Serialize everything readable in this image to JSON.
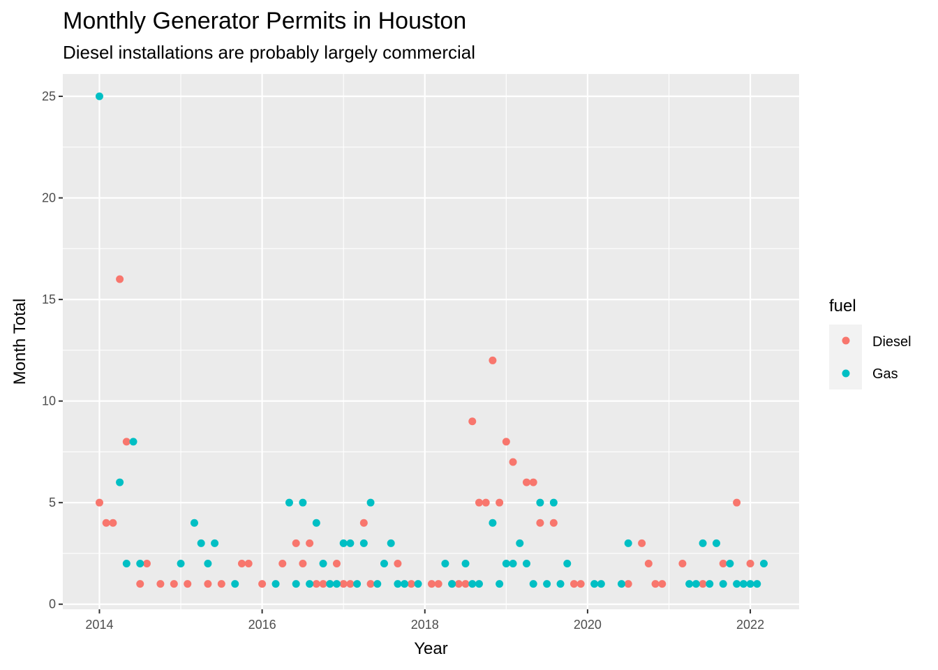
{
  "chart_data": {
    "type": "scatter",
    "title": "Monthly Generator Permits in Houston",
    "subtitle": "Diesel installations are probably largely commercial",
    "xlabel": "Year",
    "ylabel": "Month Total",
    "x_ticks": [
      "2014",
      "2016",
      "2018",
      "2020",
      "2022"
    ],
    "y_ticks": [
      "0",
      "5",
      "10",
      "15",
      "20",
      "25"
    ],
    "xlim": [
      2013.55,
      2022.6
    ],
    "ylim": [
      -0.25,
      26.1
    ],
    "grid": true,
    "legend": {
      "title": "fuel",
      "placement": "right"
    },
    "series": [
      {
        "name": "Diesel",
        "color": "#F8766D",
        "points": [
          [
            "2014-01",
            5
          ],
          [
            "2014-02",
            4
          ],
          [
            "2014-03",
            4
          ],
          [
            "2014-04",
            16
          ],
          [
            "2014-05",
            8
          ],
          [
            "2014-07",
            1
          ],
          [
            "2014-08",
            2
          ],
          [
            "2014-10",
            1
          ],
          [
            "2014-12",
            1
          ],
          [
            "2015-02",
            1
          ],
          [
            "2015-05",
            1
          ],
          [
            "2015-07",
            1
          ],
          [
            "2015-10",
            2
          ],
          [
            "2015-11",
            2
          ],
          [
            "2016-01",
            1
          ],
          [
            "2016-04",
            2
          ],
          [
            "2016-06",
            3
          ],
          [
            "2016-07",
            2
          ],
          [
            "2016-08",
            3
          ],
          [
            "2016-09",
            1
          ],
          [
            "2016-10",
            1
          ],
          [
            "2016-11",
            1
          ],
          [
            "2016-12",
            2
          ],
          [
            "2017-01",
            1
          ],
          [
            "2017-02",
            1
          ],
          [
            "2017-04",
            4
          ],
          [
            "2017-05",
            1
          ],
          [
            "2017-09",
            2
          ],
          [
            "2017-11",
            1
          ],
          [
            "2018-02",
            1
          ],
          [
            "2018-03",
            1
          ],
          [
            "2018-05",
            1
          ],
          [
            "2018-06",
            1
          ],
          [
            "2018-07",
            1
          ],
          [
            "2018-08",
            9
          ],
          [
            "2018-09",
            5
          ],
          [
            "2018-10",
            5
          ],
          [
            "2018-11",
            12
          ],
          [
            "2018-12",
            5
          ],
          [
            "2019-01",
            8
          ],
          [
            "2019-02",
            7
          ],
          [
            "2019-04",
            6
          ],
          [
            "2019-05",
            6
          ],
          [
            "2019-06",
            4
          ],
          [
            "2019-08",
            4
          ],
          [
            "2019-11",
            1
          ],
          [
            "2019-12",
            1
          ],
          [
            "2020-07",
            1
          ],
          [
            "2020-09",
            3
          ],
          [
            "2020-10",
            2
          ],
          [
            "2020-11",
            1
          ],
          [
            "2020-12",
            1
          ],
          [
            "2021-03",
            2
          ],
          [
            "2021-06",
            1
          ],
          [
            "2021-09",
            2
          ],
          [
            "2021-11",
            5
          ],
          [
            "2022-01",
            2
          ]
        ]
      },
      {
        "name": "Gas",
        "color": "#00BFC4",
        "points": [
          [
            "2014-01",
            25
          ],
          [
            "2014-04",
            6
          ],
          [
            "2014-05",
            2
          ],
          [
            "2014-06",
            8
          ],
          [
            "2014-07",
            2
          ],
          [
            "2015-01",
            2
          ],
          [
            "2015-03",
            4
          ],
          [
            "2015-04",
            3
          ],
          [
            "2015-05",
            2
          ],
          [
            "2015-06",
            3
          ],
          [
            "2015-09",
            1
          ],
          [
            "2016-03",
            1
          ],
          [
            "2016-05",
            5
          ],
          [
            "2016-06",
            1
          ],
          [
            "2016-07",
            5
          ],
          [
            "2016-08",
            1
          ],
          [
            "2016-09",
            4
          ],
          [
            "2016-10",
            2
          ],
          [
            "2016-11",
            1
          ],
          [
            "2016-12",
            1
          ],
          [
            "2017-01",
            3
          ],
          [
            "2017-02",
            3
          ],
          [
            "2017-03",
            1
          ],
          [
            "2017-04",
            3
          ],
          [
            "2017-05",
            5
          ],
          [
            "2017-06",
            1
          ],
          [
            "2017-07",
            2
          ],
          [
            "2017-08",
            3
          ],
          [
            "2017-09",
            1
          ],
          [
            "2017-10",
            1
          ],
          [
            "2017-12",
            1
          ],
          [
            "2018-04",
            2
          ],
          [
            "2018-05",
            1
          ],
          [
            "2018-07",
            2
          ],
          [
            "2018-08",
            1
          ],
          [
            "2018-09",
            1
          ],
          [
            "2018-11",
            4
          ],
          [
            "2018-12",
            1
          ],
          [
            "2019-01",
            2
          ],
          [
            "2019-02",
            2
          ],
          [
            "2019-03",
            3
          ],
          [
            "2019-04",
            2
          ],
          [
            "2019-05",
            1
          ],
          [
            "2019-06",
            5
          ],
          [
            "2019-07",
            1
          ],
          [
            "2019-08",
            5
          ],
          [
            "2019-09",
            1
          ],
          [
            "2019-10",
            2
          ],
          [
            "2020-02",
            1
          ],
          [
            "2020-03",
            1
          ],
          [
            "2020-06",
            1
          ],
          [
            "2020-07",
            3
          ],
          [
            "2021-04",
            1
          ],
          [
            "2021-05",
            1
          ],
          [
            "2021-06",
            3
          ],
          [
            "2021-07",
            1
          ],
          [
            "2021-08",
            3
          ],
          [
            "2021-09",
            1
          ],
          [
            "2021-10",
            2
          ],
          [
            "2021-11",
            1
          ],
          [
            "2021-12",
            1
          ],
          [
            "2022-01",
            1
          ],
          [
            "2022-02",
            1
          ],
          [
            "2022-03",
            2
          ]
        ]
      }
    ]
  }
}
